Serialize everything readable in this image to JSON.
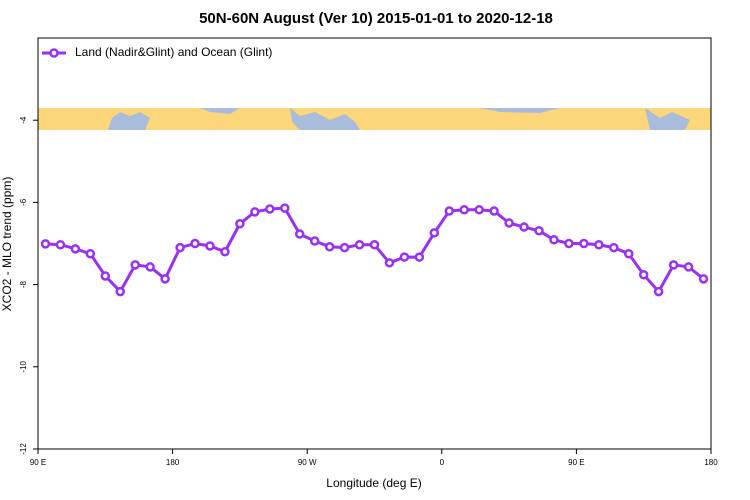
{
  "chart_data": {
    "type": "line",
    "title": "50N-60N August (Ver 10)   2015-01-01 to 2020-12-18",
    "x_label": "Longitude (deg E)",
    "y_label": "XCO2 - MLO trend (ppm)",
    "x": [
      95,
      105,
      115,
      125,
      135,
      145,
      155,
      165,
      175,
      185,
      195,
      205,
      215,
      225,
      235,
      245,
      255,
      265,
      275,
      285,
      295,
      305,
      315,
      325,
      335,
      345,
      355,
      365,
      375,
      385,
      395,
      405,
      415,
      425,
      435,
      445,
      455,
      465,
      475,
      485,
      495,
      505,
      515,
      525,
      535
    ],
    "series": [
      {
        "name": "Land (Nadir&Glint) and Ocean (Glint)",
        "color": "#9b30f0",
        "values": [
          -7.01,
          -7.03,
          -7.13,
          -7.25,
          -7.79,
          -8.17,
          -7.52,
          -7.57,
          -7.86,
          -7.1,
          -7.0,
          -7.06,
          -7.2,
          -6.52,
          -6.23,
          -6.16,
          -6.14,
          -6.77,
          -6.94,
          -7.08,
          -7.1,
          -7.03,
          -7.03,
          -7.47,
          -7.33,
          -7.33,
          -6.74,
          -6.21,
          -6.18,
          -6.18,
          -6.21,
          -6.5,
          -6.6,
          -6.69,
          -6.91,
          -7.0,
          -7.0,
          -7.03,
          -7.1,
          -7.25,
          -7.76,
          -8.17,
          -7.52,
          -7.57,
          -7.86
        ]
      }
    ],
    "xlim": [
      90,
      540
    ],
    "xticks": [
      {
        "value": 90,
        "label": "90 E"
      },
      180,
      {
        "value": 270,
        "label": "90 W"
      },
      {
        "value": 360,
        "label": "0"
      },
      {
        "value": 450,
        "label": "90 E"
      },
      {
        "value": 540,
        "label": "180"
      }
    ],
    "ylim": [
      -12,
      -2
    ],
    "yticks": [
      -12,
      -10,
      -8,
      -6,
      -4
    ],
    "legend": "top-left"
  }
}
